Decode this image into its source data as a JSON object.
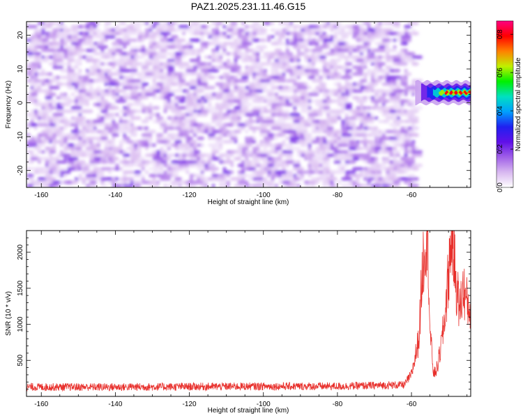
{
  "chart_data": [
    {
      "type": "heatmap",
      "title": "PAZ1.2025.231.11.46.G15",
      "xlabel": "Height of straight line (km)",
      "ylabel": "Frequency (Hz)",
      "xlim": [
        -164,
        -44
      ],
      "ylim": [
        -25,
        24
      ],
      "xticks": [
        -160,
        -140,
        -120,
        -100,
        -80,
        -60
      ],
      "yticks": [
        -20,
        -10,
        0,
        10,
        20
      ],
      "data_extent_x": [
        -164,
        -59
      ],
      "bright_feature": {
        "x_range": [
          -59,
          -44
        ],
        "center_hz": 3
      },
      "colorbar": {
        "label": "Normalized spectral amplitude",
        "range": [
          0,
          0.87
        ],
        "ticks": [
          0.0,
          0.2,
          0.4,
          0.6,
          0.8
        ],
        "colormap": [
          "#ffffff",
          "#d8b8f0",
          "#a060e8",
          "#6010e8",
          "#2020f0",
          "#00a0ff",
          "#00e0c0",
          "#00f000",
          "#c0f000",
          "#ff8000",
          "#ff0000",
          "#ff0080"
        ]
      }
    },
    {
      "type": "line",
      "xlabel": "Height of straight line (km)",
      "ylabel": "SNR (10 * v/v)",
      "xlim": [
        -164,
        -44
      ],
      "ylim": [
        0,
        2300
      ],
      "xticks": [
        -160,
        -140,
        -120,
        -100,
        -80,
        -60
      ],
      "yticks": [
        500,
        1000,
        1500,
        2000
      ],
      "color": "#e8302c",
      "series": [
        {
          "name": "SNR",
          "x": [
            -164,
            -140,
            -120,
            -100,
            -80,
            -62,
            -60,
            -58,
            -57,
            -56,
            -55.5,
            -55,
            -54,
            -53,
            -52,
            -51,
            -50,
            -49,
            -48,
            -47,
            -46,
            -45,
            -44
          ],
          "y": [
            130,
            130,
            135,
            140,
            140,
            160,
            300,
            800,
            1800,
            2300,
            2100,
            900,
            300,
            400,
            700,
            1100,
            1700,
            2300,
            1600,
            1200,
            1500,
            1300,
            1200
          ]
        }
      ]
    }
  ]
}
